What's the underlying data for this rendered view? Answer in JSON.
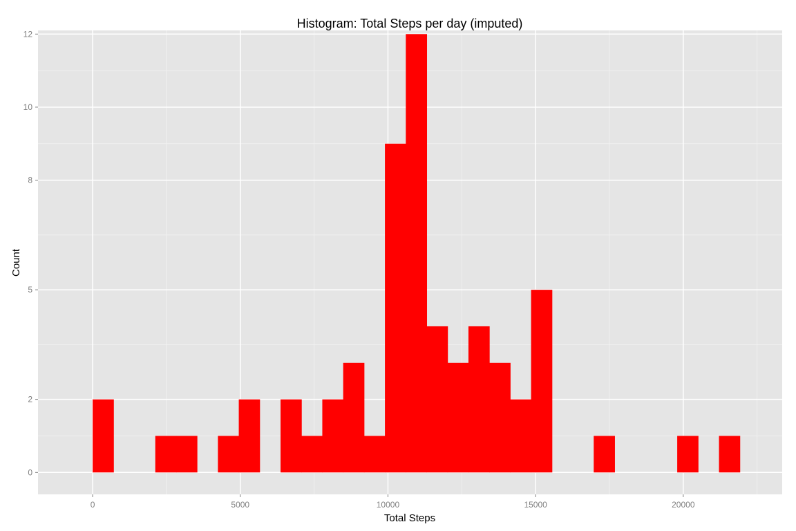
{
  "chart_data": {
    "type": "bar",
    "title": "Histogram: Total Steps per day (imputed)",
    "xlabel": "Total Steps",
    "ylabel": "Count",
    "xlim": [
      -1850,
      23350
    ],
    "ylim": [
      -0.6,
      12.1
    ],
    "x_ticks": [
      0,
      5000,
      10000,
      15000,
      20000
    ],
    "y_ticks": [
      0,
      2,
      5,
      8,
      10,
      12
    ],
    "bins": [
      {
        "start": 0,
        "end": 707,
        "count": 2
      },
      {
        "start": 707,
        "end": 1414,
        "count": 0
      },
      {
        "start": 1414,
        "end": 2121,
        "count": 0
      },
      {
        "start": 2121,
        "end": 2828,
        "count": 1
      },
      {
        "start": 2828,
        "end": 3535,
        "count": 1
      },
      {
        "start": 3535,
        "end": 4242,
        "count": 0
      },
      {
        "start": 4242,
        "end": 4949,
        "count": 1
      },
      {
        "start": 4949,
        "end": 5656,
        "count": 2
      },
      {
        "start": 5656,
        "end": 6363,
        "count": 0
      },
      {
        "start": 6363,
        "end": 7070,
        "count": 2
      },
      {
        "start": 7070,
        "end": 7777,
        "count": 1
      },
      {
        "start": 7777,
        "end": 8484,
        "count": 2
      },
      {
        "start": 8484,
        "end": 9191,
        "count": 3
      },
      {
        "start": 9191,
        "end": 9898,
        "count": 1
      },
      {
        "start": 9898,
        "end": 10605,
        "count": 9
      },
      {
        "start": 10605,
        "end": 11312,
        "count": 12
      },
      {
        "start": 11312,
        "end": 12019,
        "count": 4
      },
      {
        "start": 12019,
        "end": 12726,
        "count": 3
      },
      {
        "start": 12726,
        "end": 13433,
        "count": 4
      },
      {
        "start": 13433,
        "end": 14140,
        "count": 3
      },
      {
        "start": 14140,
        "end": 14847,
        "count": 2
      },
      {
        "start": 14847,
        "end": 15554,
        "count": 5
      },
      {
        "start": 15554,
        "end": 16261,
        "count": 0
      },
      {
        "start": 16261,
        "end": 16968,
        "count": 0
      },
      {
        "start": 16968,
        "end": 17675,
        "count": 1
      },
      {
        "start": 17675,
        "end": 18382,
        "count": 0
      },
      {
        "start": 18382,
        "end": 19089,
        "count": 0
      },
      {
        "start": 19089,
        "end": 19796,
        "count": 0
      },
      {
        "start": 19796,
        "end": 20503,
        "count": 1
      },
      {
        "start": 20503,
        "end": 21210,
        "count": 0
      },
      {
        "start": 21210,
        "end": 21917,
        "count": 1
      }
    ],
    "grid": true,
    "legend": "none",
    "colors": {
      "bar": "#ff0000",
      "panel_background": "#e5e5e5",
      "grid_major": "#ffffff",
      "grid_minor": "#f2f2f2",
      "tick_label": "#7f7f7f"
    }
  }
}
